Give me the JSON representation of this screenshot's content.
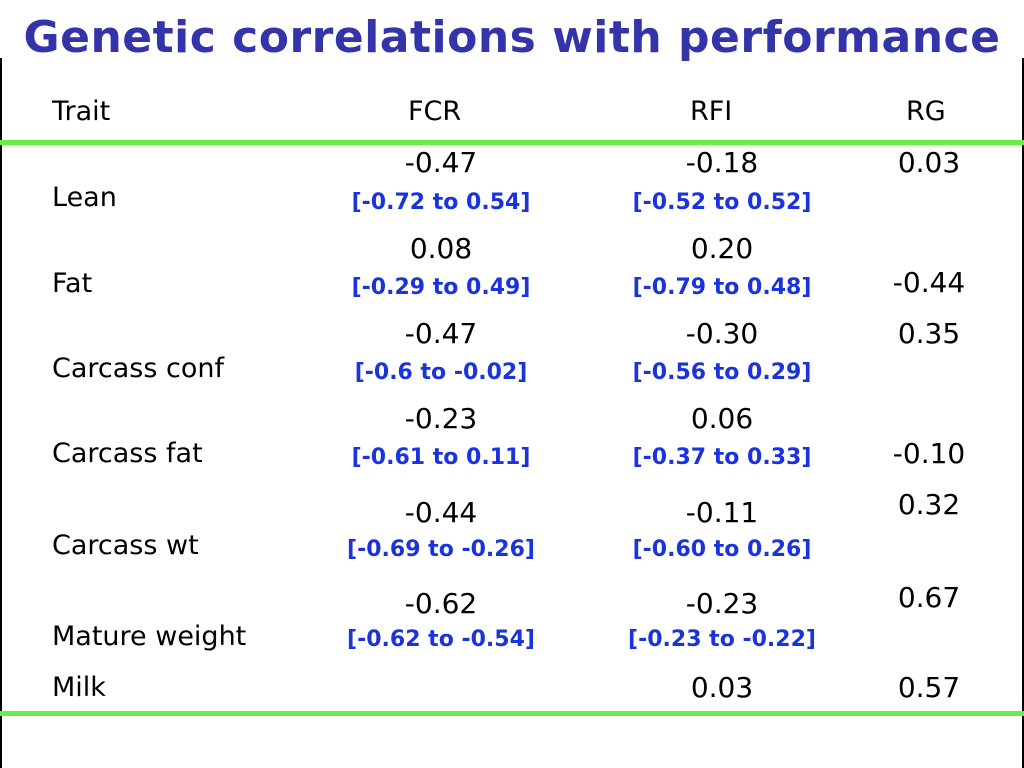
{
  "slide": {
    "title": "Genetic correlations with performance"
  },
  "table": {
    "headers": {
      "trait": "Trait",
      "fcr": "FCR",
      "rfi": "RFI",
      "rg": "RG"
    },
    "rows": [
      {
        "trait": "Lean",
        "fcr": "-0.47",
        "fcr_ci": "[-0.72 to 0.54]",
        "rfi": "-0.18",
        "rfi_ci": "[-0.52 to 0.52]",
        "rg": "0.03"
      },
      {
        "trait": "Fat",
        "fcr": "0.08",
        "fcr_ci": "[-0.29 to 0.49]",
        "rfi": "0.20",
        "rfi_ci": "[-0.79 to 0.48]",
        "rg": "-0.44"
      },
      {
        "trait": "Carcass conf",
        "fcr": "-0.47",
        "fcr_ci": "[-0.6 to -0.02]",
        "rfi": "-0.30",
        "rfi_ci": "[-0.56 to 0.29]",
        "rg": "0.35"
      },
      {
        "trait": "Carcass fat",
        "fcr": "-0.23",
        "fcr_ci": "[-0.61 to 0.11]",
        "rfi": "0.06",
        "rfi_ci": "[-0.37 to 0.33]",
        "rg": "-0.10"
      },
      {
        "trait": "Carcass wt",
        "fcr": "-0.44",
        "fcr_ci": "[-0.69 to -0.26]",
        "rfi": "-0.11",
        "rfi_ci": "[-0.60 to 0.26]",
        "rg": "0.32"
      },
      {
        "trait": "Mature weight",
        "fcr": "-0.62",
        "fcr_ci": "[-0.62 to -0.54]",
        "rfi": "-0.23",
        "rfi_ci": "[-0.23 to -0.22]",
        "rg": "0.67"
      },
      {
        "trait": "Milk",
        "rfi": "0.03",
        "rg": "0.57"
      }
    ]
  },
  "colors": {
    "title": "#3333aa",
    "rule": "#66ee44",
    "interval": "#1a33dd"
  }
}
